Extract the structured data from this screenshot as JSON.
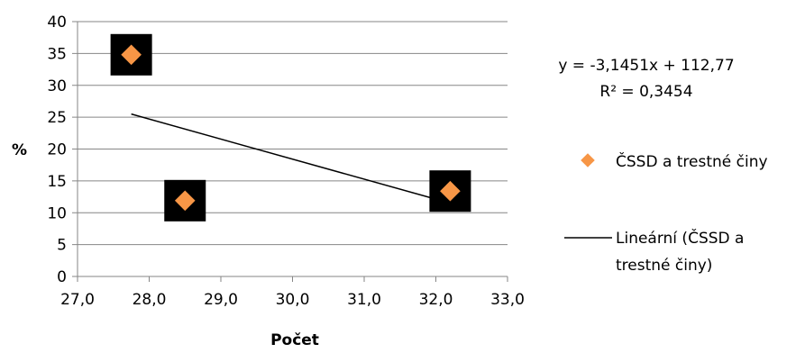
{
  "chart_data": {
    "type": "scatter",
    "xlabel": "Počet",
    "ylabel": "%",
    "xlim": [
      27.0,
      33.0
    ],
    "ylim": [
      0,
      40
    ],
    "x_ticks": [
      "27,0",
      "28,0",
      "29,0",
      "30,0",
      "31,0",
      "32,0",
      "33,0"
    ],
    "y_ticks": [
      "0",
      "5",
      "10",
      "15",
      "20",
      "25",
      "30",
      "35",
      "40"
    ],
    "grid": "horizontal",
    "legend_position": "right",
    "series": [
      {
        "name": "ČSSD a trestné činy",
        "marker": "diamond",
        "color": "#f79646",
        "points": [
          {
            "x": 27.75,
            "y": 34.8
          },
          {
            "x": 28.5,
            "y": 11.9
          },
          {
            "x": 32.2,
            "y": 13.4
          }
        ]
      }
    ],
    "trendline": {
      "name": "Lineární (ČSSD a trestné činy)",
      "type": "linear",
      "slope": -3.1451,
      "intercept": 112.77,
      "x_range": [
        27.75,
        32.2
      ],
      "color": "#000000",
      "equation": "y = -3,1451x + 112,77",
      "r_squared": "R² = 0,3454"
    }
  },
  "legend": {
    "series_label": "ČSSD a trestné činy",
    "trend_label_line1": "Lineární (ČSSD a",
    "trend_label_line2": "trestné činy)"
  }
}
